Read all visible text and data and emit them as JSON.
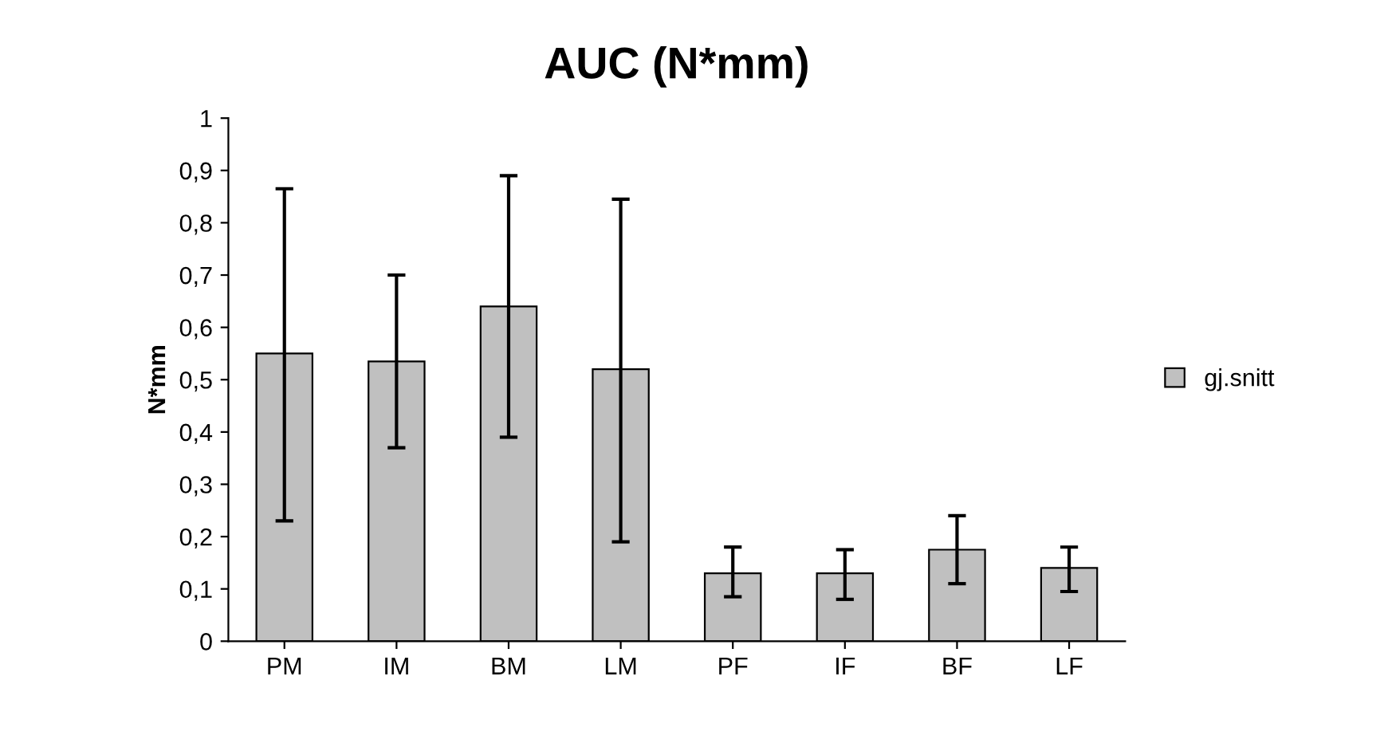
{
  "chart_data": {
    "type": "bar",
    "title": "AUC (N*mm)",
    "ylabel": "N*mm",
    "categories": [
      "PM",
      "IM",
      "BM",
      "LM",
      "PF",
      "IF",
      "BF",
      "LF"
    ],
    "series": [
      {
        "name": "gj.snitt",
        "color": "#c0c0c0",
        "values": [
          0.55,
          0.535,
          0.64,
          0.52,
          0.13,
          0.13,
          0.175,
          0.14
        ],
        "errors": [
          [
            0.23,
            0.865
          ],
          [
            0.37,
            0.7
          ],
          [
            0.39,
            0.89
          ],
          [
            0.19,
            0.845
          ],
          [
            0.085,
            0.18
          ],
          [
            0.08,
            0.175
          ],
          [
            0.11,
            0.24
          ],
          [
            0.095,
            0.18
          ]
        ]
      }
    ],
    "ylim": [
      0,
      1
    ],
    "yticks": [
      0,
      {
        "value": 0.1,
        "label": "0,1"
      },
      {
        "value": 0.2,
        "label": "0,2"
      },
      {
        "value": 0.3,
        "label": "0,3"
      },
      {
        "value": 0.4,
        "label": "0,4"
      },
      {
        "value": 0.5,
        "label": "0,5"
      },
      {
        "value": 0.6,
        "label": "0,6"
      },
      {
        "value": 0.7,
        "label": "0,7"
      },
      {
        "value": 0.8,
        "label": "0,8"
      },
      {
        "value": 0.9,
        "label": "0,9"
      },
      1
    ],
    "grid": false,
    "legend": "right"
  }
}
